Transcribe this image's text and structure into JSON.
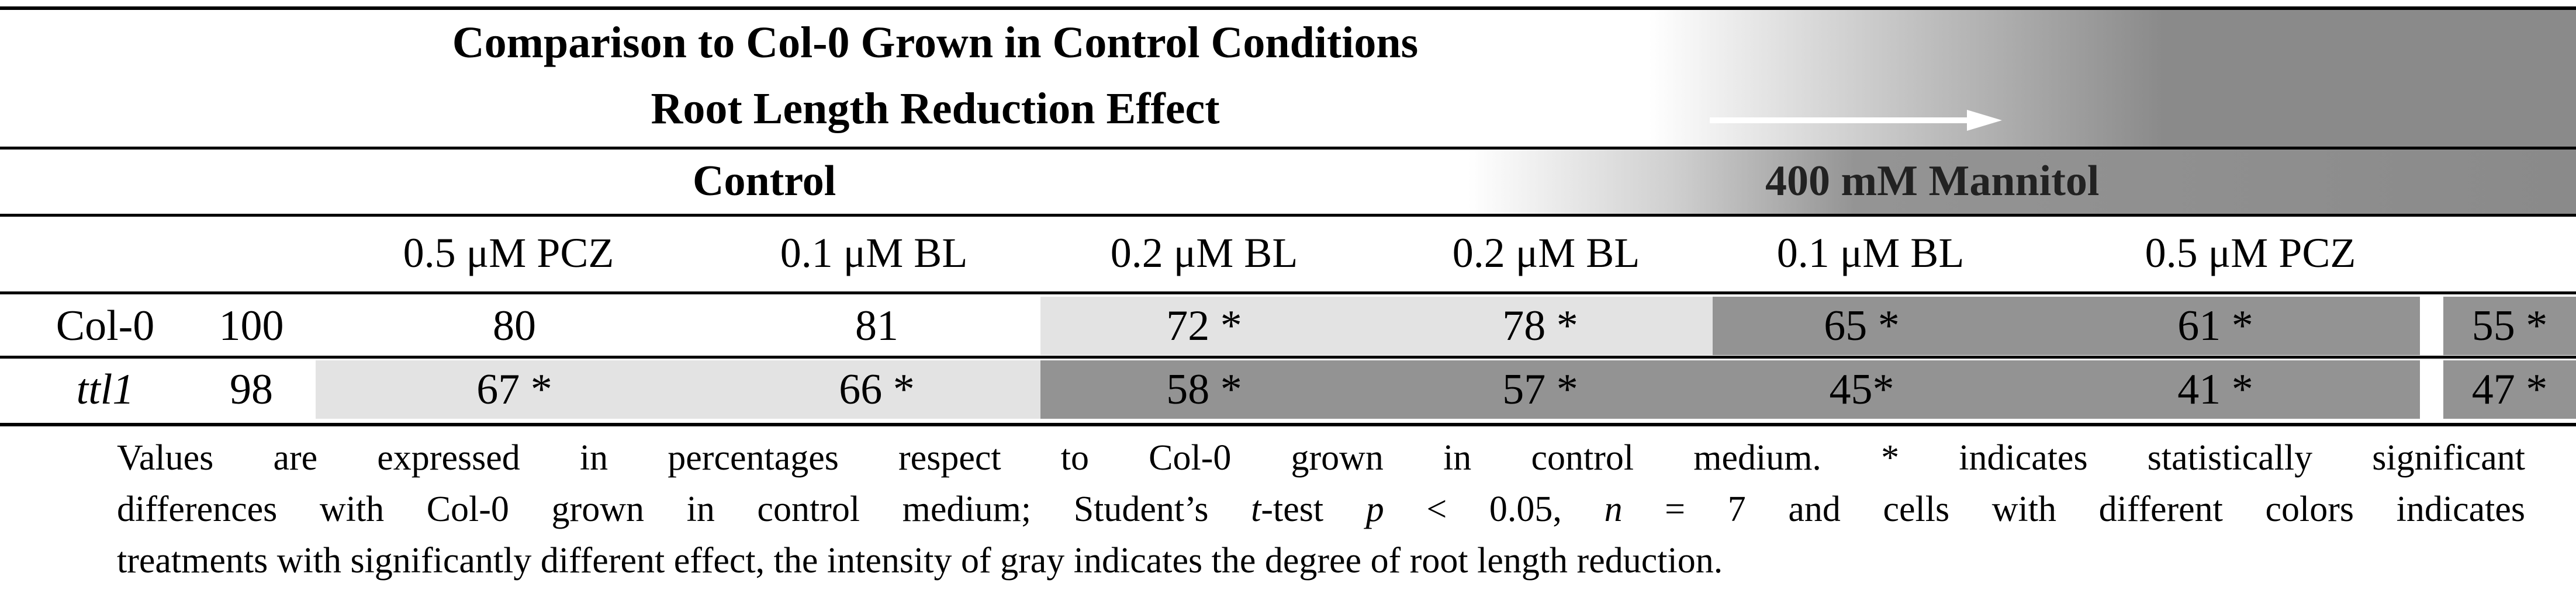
{
  "header": {
    "title_line1": "Comparison to Col-0 Grown in Control Conditions",
    "title_line2": "Root Length Reduction Effect",
    "arrow_icon": "right-arrow-icon"
  },
  "groups": {
    "control": "Control",
    "mannitol": "400 mM Mannitol"
  },
  "columns": [
    "0.5 μM PCZ",
    "0.1 μM BL",
    "0.2 μM BL",
    "0.2 μM BL",
    "0.1 μM BL",
    "0.5 μM PCZ"
  ],
  "rows": [
    {
      "label": "Col-0",
      "base": "100",
      "values": [
        "80",
        "81",
        "72 *",
        "78 *",
        "65 *",
        "61 *",
        "55 *"
      ]
    },
    {
      "label": "ttl1",
      "base": "98",
      "values": [
        "67 *",
        "66 *",
        "58 *",
        "57 *",
        "45*",
        "41 *",
        "47 *"
      ]
    }
  ],
  "colors": {
    "light_gray": "#e3e3e3",
    "dark_gray": "#939393",
    "rule": "#000000"
  },
  "footnote": {
    "l1": "Values are expressed in percentages respect to Col-0 grown in control medium. * indicates statistically significant",
    "l2_a": "differences with Col-0 grown in control medium; Student’s ",
    "l2_t": "t",
    "l2_b": "-test ",
    "l2_p": "p",
    "l2_c": " < 0.05, ",
    "l2_n": "n",
    "l2_d": " = 7 and cells with different colors indicates",
    "l3": "treatments with significantly different effect, the intensity of gray indicates the degree of root length reduction."
  }
}
